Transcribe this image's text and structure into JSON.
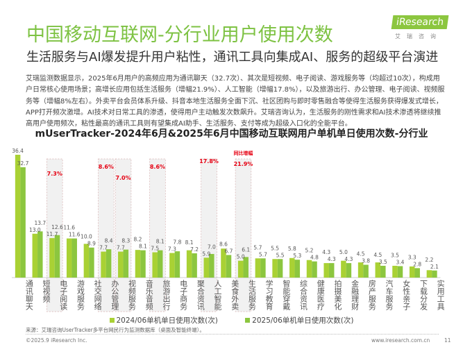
{
  "header": {
    "title": "中国移动互联网-分行业用户使用次数",
    "subtitle": "生活服务与AI爆发提升用户粘性，通讯工具向集成AI、服务的超级平台演进",
    "logo_main": "iResearch",
    "logo_sub": "艾瑞咨询"
  },
  "paragraph": "艾瑞监测数据显示，2025年6月用户的高频应用为通讯聊天（32.7次）、其次是短视频、电子阅读、游戏服务等（均超过10次），构成用户日常核心使用场景；高增长应用包括生活服务（增幅21.9%）、人工智能（增幅17.8%），以及旅游出行、办公管理、电子阅读、视频服务等（增幅8%左右）。外卖平台会员体系升级、抖音本地生活服务全面下沉、社区团购与即时零售融合等使得生活服务获得爆发式增长，APP打开频次激增。AI技术对日常工具的渗透，使得用户主动触发次数飙升。艾瑞咨询认为，生活服务的刚性需求和AI技术渗透将继续推高用户使用频次，粘性最高的通讯工具则有望集成AI助手、生活服务、支付等成为超级入口化的全能平台。",
  "chart_data": {
    "type": "bar",
    "title": "mUserTracker-2024年6月&2025年6月中国移动互联网用户单机单日使用次数-分行业",
    "categories": [
      "通讯聊天",
      "短视频",
      "电子阅读",
      "游戏服务",
      "社交网络",
      "办公管理",
      "视频服务",
      "音乐音频",
      "旅游出行",
      "电子商务",
      "聚合资讯",
      "人工智能",
      "美食外卖",
      "生活服务",
      "学习教育",
      "智能穿戴",
      "综合资讯",
      "健康医疗",
      "拍摄美化",
      "金融理财",
      "房产服务",
      "汽车服务",
      "女性亲子",
      "下载分发",
      "实用工具"
    ],
    "series": [
      {
        "name": "2024/06单机单日使用次数(次)",
        "color": "#a9d134",
        "values": [
          36.4,
          13.0,
          11.7,
          11.6,
          10.0,
          7.7,
          7.7,
          8.2,
          7.5,
          7.3,
          8.1,
          5.9,
          8.6,
          5.0,
          5.7,
          5.5,
          5.8,
          5.2,
          4.3,
          5.0,
          4.5,
          4.5,
          3.5,
          3.3,
          2.2
        ]
      },
      {
        "name": "2025/06单机单日使用次数(次)",
        "color": "#8cc63f",
        "values": [
          32.7,
          13.7,
          12.6,
          11.6,
          8.9,
          8.4,
          8.3,
          8.1,
          8.1,
          7.8,
          7.2,
          7.0,
          6.7,
          6.1,
          5.7,
          5.5,
          5.3,
          4.8,
          4.3,
          4.3,
          3.8,
          3.5,
          3.4,
          2.8,
          2.1
        ]
      }
    ],
    "highlights": [
      {
        "category": "电子阅读",
        "growth": "7.3%"
      },
      {
        "category": "办公管理",
        "growth": "8.6%"
      },
      {
        "category": "视频服务",
        "growth": "7.0%"
      },
      {
        "category": "旅游出行",
        "growth": "8.6%"
      },
      {
        "category": "人工智能",
        "growth": "17.8%"
      },
      {
        "category": "生活服务",
        "growth": "21.9%",
        "header": "同比增幅"
      }
    ],
    "highlight_color": "#e60012",
    "ylim": [
      0,
      36.4
    ],
    "grid": false,
    "legend_position": "bottom"
  },
  "source": "来源：艾瑞咨询UserTracker多平台网民行为监测数据库（桌面及智能终端）。",
  "footer": {
    "copyright": "©2025.9 iResearch Inc.",
    "website": "www.iresearch.com.cn",
    "page": "11"
  }
}
